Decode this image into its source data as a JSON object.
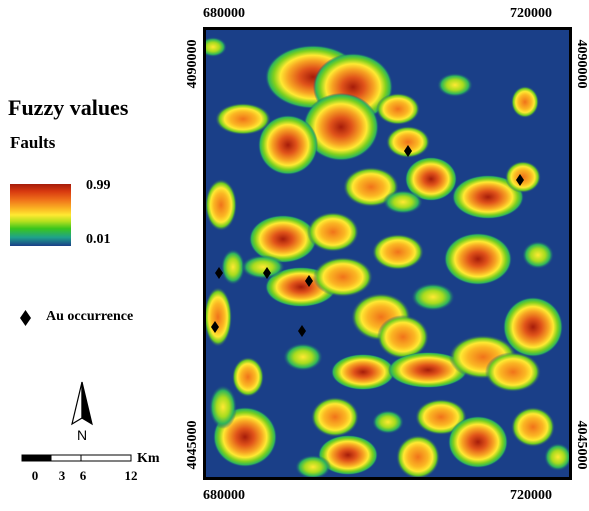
{
  "legend": {
    "title": "Fuzzy values",
    "subtitle": "Faults",
    "max_label": "0.99",
    "min_label": "0.01",
    "ramp_colors": [
      "#a61c0a",
      "#f0731a",
      "#ffe932",
      "#39c51d",
      "#1a3f88"
    ],
    "au_label": "Au occurrence",
    "au_icon": "black-diamond"
  },
  "north_arrow": {
    "label": "N"
  },
  "scale": {
    "unit": "Km",
    "ticks": [
      "0",
      "3",
      "6",
      "12"
    ]
  },
  "coordinates": {
    "top_left": "680000",
    "top_right": "720000",
    "bottom_left": "680000",
    "bottom_right": "720000",
    "left_top": "4090000",
    "left_bottom": "4045000",
    "right_top": "4090000",
    "right_bottom": "4045000"
  },
  "map_colors": {
    "background": "#1a3f88",
    "low": "#39c51d",
    "mid": "#ffe932",
    "high": "#f0731a",
    "peak": "#a61c0a"
  }
}
